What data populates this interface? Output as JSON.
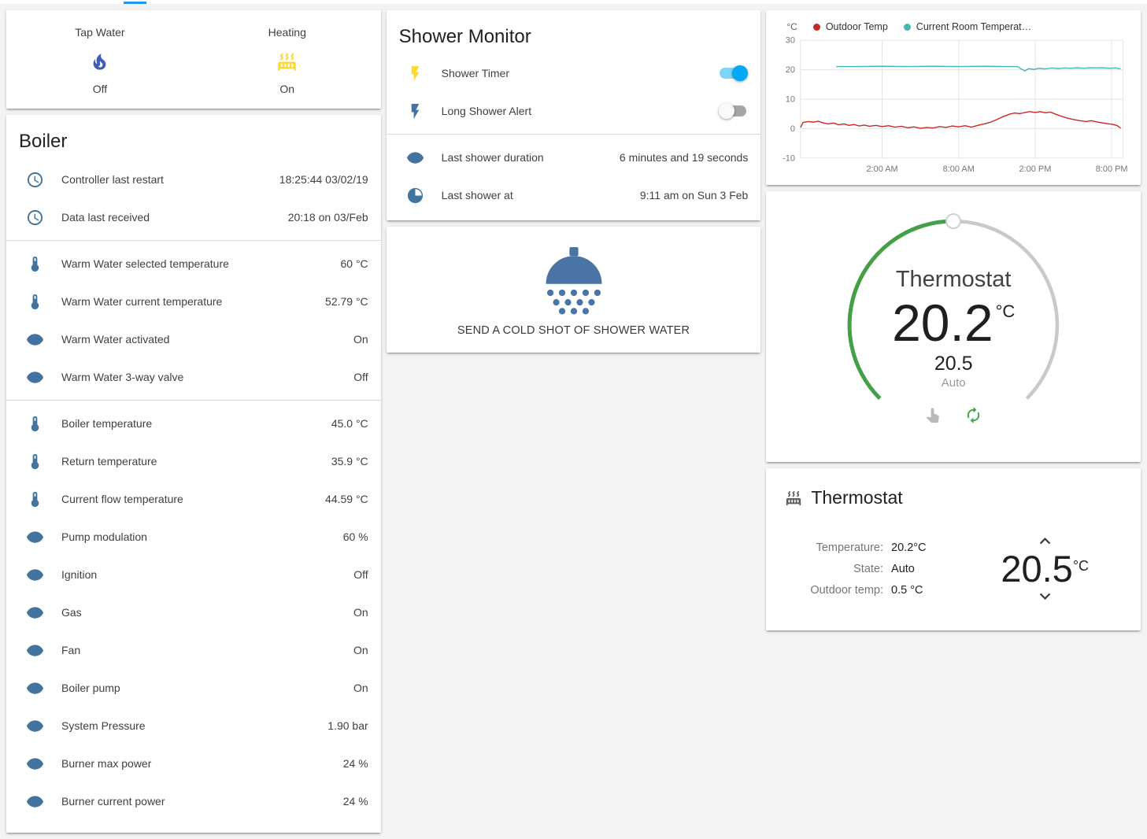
{
  "colors": {
    "accent": "#03a9f4",
    "tab-indicator": "#2196f3",
    "icon": "#44739e",
    "icon-active": "#fdd835",
    "tap-water-icon": "#3f5db8",
    "shower-icon": "#4a74a4",
    "green": "#43a047",
    "toggle-on-track": "#7fd4f8",
    "toggle-off-track": "#a5a5a5",
    "toggle-off-thumb": "#fafafa"
  },
  "glance": {
    "items": [
      {
        "name": "Tap Water",
        "state": "Off",
        "icon": "fire-icon"
      },
      {
        "name": "Heating",
        "state": "On",
        "icon": "radiator-icon"
      }
    ]
  },
  "boiler": {
    "title": "Boiler",
    "groups": [
      {
        "rows": [
          {
            "icon": "clock-icon",
            "label": "Controller last restart",
            "value": "18:25:44 03/02/19"
          },
          {
            "icon": "clock-icon",
            "label": "Data last received",
            "value": "20:18 on 03/Feb"
          }
        ]
      },
      {
        "rows": [
          {
            "icon": "thermometer-icon",
            "label": "Warm Water selected temperature",
            "value": "60 °C"
          },
          {
            "icon": "thermometer-icon",
            "label": "Warm Water current temperature",
            "value": "52.79 °C"
          },
          {
            "icon": "eye-icon",
            "label": "Warm Water activated",
            "value": "On"
          },
          {
            "icon": "eye-icon",
            "label": "Warm Water 3-way valve",
            "value": "Off"
          }
        ]
      },
      {
        "rows": [
          {
            "icon": "thermometer-icon",
            "label": "Boiler temperature",
            "value": "45.0 °C"
          },
          {
            "icon": "thermometer-icon",
            "label": "Return temperature",
            "value": "35.9 °C"
          },
          {
            "icon": "thermometer-icon",
            "label": "Current flow temperature",
            "value": "44.59 °C"
          },
          {
            "icon": "eye-icon",
            "label": "Pump modulation",
            "value": "60 %"
          },
          {
            "icon": "eye-icon",
            "label": "Ignition",
            "value": "Off"
          },
          {
            "icon": "eye-icon",
            "label": "Gas",
            "value": "On"
          },
          {
            "icon": "eye-icon",
            "label": "Fan",
            "value": "On"
          },
          {
            "icon": "eye-icon",
            "label": "Boiler pump",
            "value": "On"
          },
          {
            "icon": "eye-icon",
            "label": "System Pressure",
            "value": "1.90 bar"
          },
          {
            "icon": "eye-icon",
            "label": "Burner max power",
            "value": "24 %"
          },
          {
            "icon": "eye-icon",
            "label": "Burner current power",
            "value": "24 %"
          }
        ]
      }
    ]
  },
  "shower_monitor": {
    "title": "Shower Monitor",
    "toggles": [
      {
        "icon": "flash-icon",
        "label": "Shower Timer",
        "state": "on"
      },
      {
        "icon": "flash-icon",
        "label": "Long Shower Alert",
        "state": "off"
      }
    ],
    "info_rows": [
      {
        "icon": "eye-icon",
        "label": "Last shower duration",
        "value": "6 minutes and 19 seconds"
      },
      {
        "icon": "time-icon",
        "label": "Last shower at",
        "value": "9:11 am on Sun 3 Feb"
      }
    ]
  },
  "shower_action": {
    "label": "SEND A COLD SHOT OF SHOWER WATER"
  },
  "chart_data": {
    "type": "line",
    "title": "",
    "ylabel": "°C",
    "xlabel": "",
    "ylim": [
      -10,
      30
    ],
    "xlim": [
      -4.4,
      20.9
    ],
    "yticks": [
      30,
      20,
      10,
      0,
      -10
    ],
    "xticks": [
      2,
      8,
      14,
      20
    ],
    "xtick_labels": [
      "2:00 AM",
      "8:00 AM",
      "2:00 PM",
      "8:00 PM"
    ],
    "x_unit": "hours, 0 = midnight",
    "grid": true,
    "legend_position": "top",
    "series": [
      {
        "name": "Outdoor Temp",
        "color": "#c62828",
        "points": [
          [
            -4.4,
            0.4
          ],
          [
            -4.2,
            2.1
          ],
          [
            -3.8,
            2.4
          ],
          [
            -3.4,
            2.2
          ],
          [
            -3,
            2.5
          ],
          [
            -2.6,
            1.9
          ],
          [
            -2.2,
            1.6
          ],
          [
            -1.8,
            1.9
          ],
          [
            -1.4,
            1.3
          ],
          [
            -1,
            1.6
          ],
          [
            -0.6,
            1.1
          ],
          [
            -0.2,
            1.4
          ],
          [
            0.2,
            0.9
          ],
          [
            0.6,
            1.2
          ],
          [
            1,
            0.8
          ],
          [
            1.5,
            1.1
          ],
          [
            2,
            0.7
          ],
          [
            2.5,
            1.0
          ],
          [
            3,
            0.5
          ],
          [
            3.5,
            0.8
          ],
          [
            4,
            0.3
          ],
          [
            4.5,
            0.6
          ],
          [
            5,
            0.1
          ],
          [
            5.5,
            0.4
          ],
          [
            6,
            0.2
          ],
          [
            6.5,
            0.7
          ],
          [
            7,
            0.4
          ],
          [
            7.5,
            0.9
          ],
          [
            8,
            0.6
          ],
          [
            8.5,
            1.0
          ],
          [
            9,
            0.5
          ],
          [
            9.5,
            1.1
          ],
          [
            10,
            1.6
          ],
          [
            10.5,
            2.2
          ],
          [
            11,
            3.1
          ],
          [
            11.5,
            4.1
          ],
          [
            12,
            4.9
          ],
          [
            12.4,
            5.3
          ],
          [
            12.8,
            5.1
          ],
          [
            13.2,
            5.5
          ],
          [
            13.6,
            5.8
          ],
          [
            14,
            5.5
          ],
          [
            14.4,
            5.8
          ],
          [
            14.8,
            5.4
          ],
          [
            15.2,
            5.6
          ],
          [
            15.6,
            4.9
          ],
          [
            16,
            4.3
          ],
          [
            16.5,
            3.6
          ],
          [
            17,
            3.1
          ],
          [
            17.5,
            2.7
          ],
          [
            18,
            2.4
          ],
          [
            18.4,
            2.7
          ],
          [
            18.8,
            2.3
          ],
          [
            19.2,
            2.0
          ],
          [
            19.6,
            1.7
          ],
          [
            20,
            1.5
          ],
          [
            20.4,
            1.1
          ],
          [
            20.7,
            0.2
          ]
        ]
      },
      {
        "name": "Current Room Temperat…",
        "color": "#45b6b0",
        "points": [
          [
            -1.6,
            21.1
          ],
          [
            0,
            21.1
          ],
          [
            2,
            21.2
          ],
          [
            4,
            21.1
          ],
          [
            6,
            21.2
          ],
          [
            8,
            21.1
          ],
          [
            10,
            21.2
          ],
          [
            11.5,
            21.1
          ],
          [
            12.6,
            21.1
          ],
          [
            12.9,
            20.3
          ],
          [
            13.2,
            19.6
          ],
          [
            13.5,
            20.4
          ],
          [
            13.9,
            20.1
          ],
          [
            14.3,
            20.5
          ],
          [
            14.8,
            20.3
          ],
          [
            15.3,
            20.6
          ],
          [
            15.8,
            20.4
          ],
          [
            16.3,
            20.6
          ],
          [
            16.8,
            20.5
          ],
          [
            17.3,
            20.7
          ],
          [
            17.8,
            20.5
          ],
          [
            18.3,
            20.7
          ],
          [
            18.8,
            20.6
          ],
          [
            19.3,
            20.7
          ],
          [
            19.8,
            20.5
          ],
          [
            20.3,
            20.6
          ],
          [
            20.7,
            20.3
          ]
        ]
      }
    ]
  },
  "dial": {
    "title": "Thermostat",
    "current_temperature": "20.2",
    "unit": "°C",
    "target_temperature": "20.5",
    "mode": "Auto"
  },
  "thermostat_card": {
    "title": "Thermostat",
    "rows": [
      {
        "label": "Temperature:",
        "value": "20.2°C"
      },
      {
        "label": "State:",
        "value": "Auto"
      },
      {
        "label": "Outdoor temp:",
        "value": "0.5 °C"
      }
    ],
    "target": "20.5",
    "unit": "°C"
  }
}
